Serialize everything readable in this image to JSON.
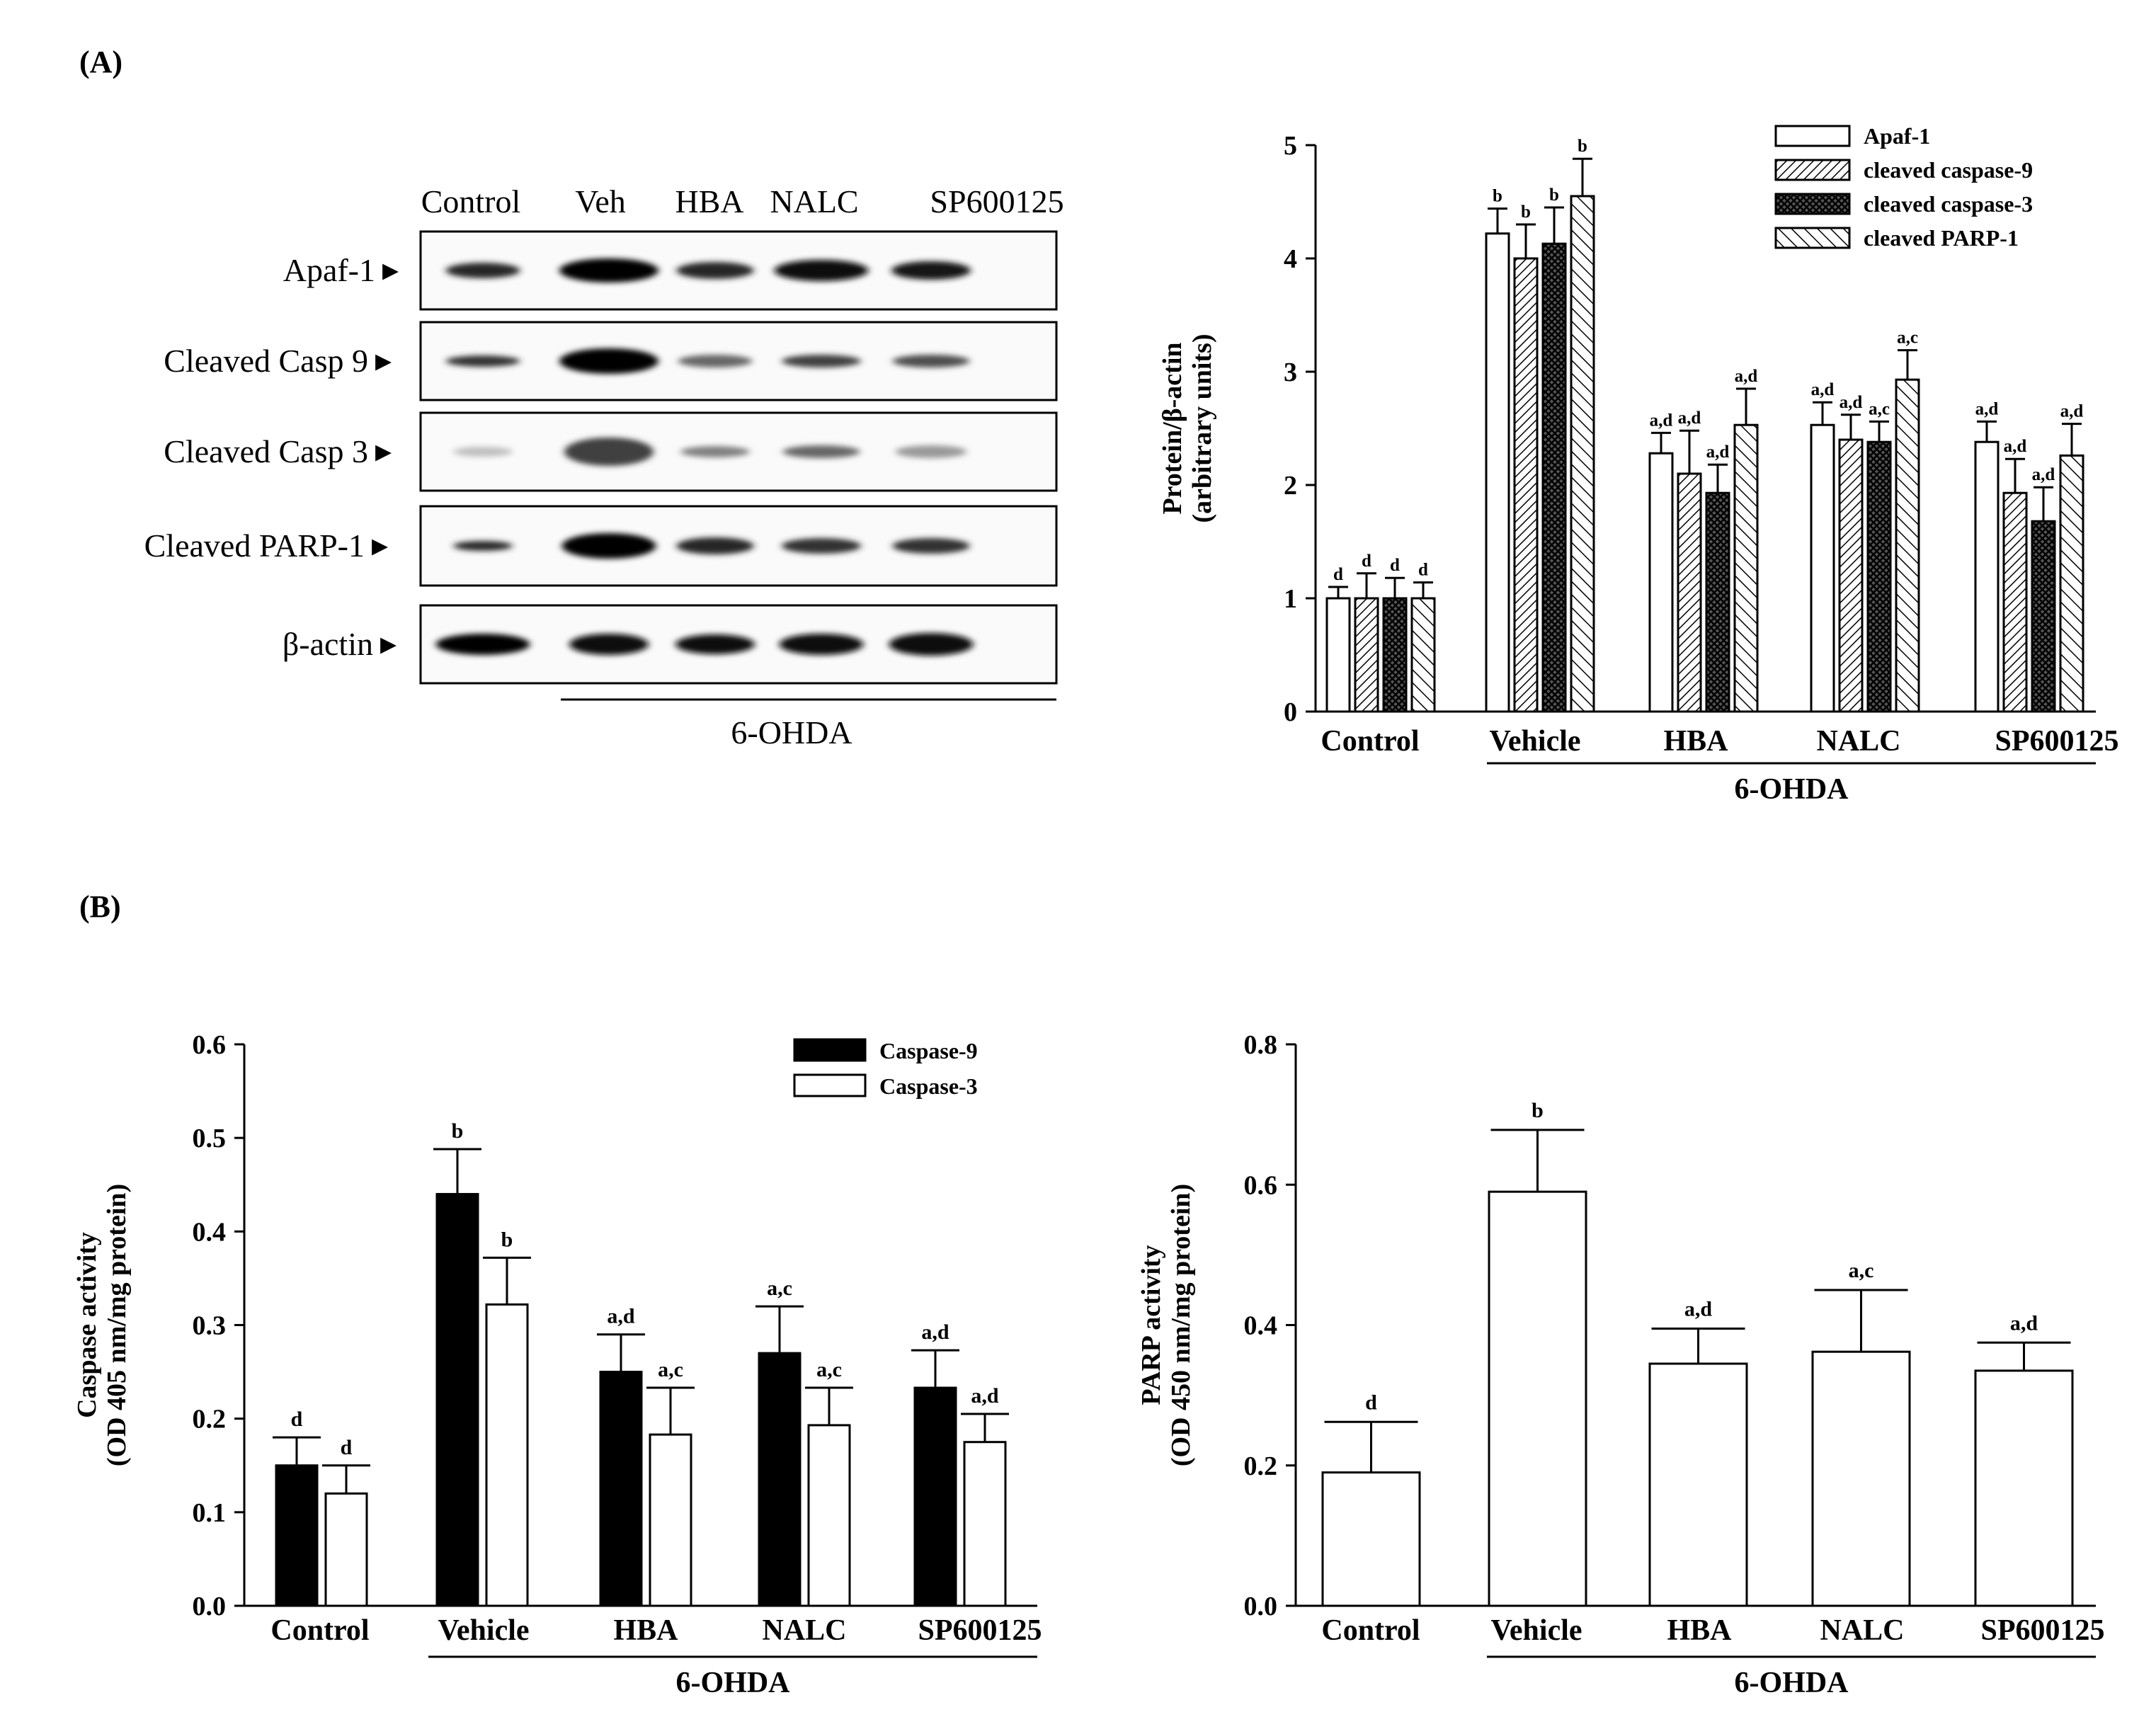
{
  "figure": {
    "panel_a_label": "(A)",
    "panel_b_label": "(B)",
    "treatment_label": "6-OHDA"
  },
  "blot": {
    "lanes": [
      "Control",
      "Veh",
      "HBA",
      "NALC",
      "SP600125"
    ],
    "rows": [
      "Apaf-1",
      "Cleaved Casp 9",
      "Cleaved Casp 3",
      "Cleaved PARP-1",
      "β-actin"
    ],
    "treatment_label": "6-OHDA",
    "arrow": "▸"
  },
  "colors": {
    "black": "#000000",
    "white": "#ffffff"
  },
  "chart_data": [
    {
      "id": "western_quant",
      "type": "bar",
      "title": "",
      "ylabel": [
        "Protein/β-actin",
        "(arbitrary units)"
      ],
      "ylim": [
        0,
        5
      ],
      "yticks": [
        "0",
        "1",
        "2",
        "3",
        "4",
        "5"
      ],
      "categories": [
        "Control",
        "Vehicle",
        "HBA",
        "NALC",
        "SP600125"
      ],
      "group_label": "6-OHDA",
      "legend_position": "top-right",
      "series": [
        {
          "name": "Apaf-1",
          "pattern": "white",
          "values": [
            1.0,
            4.22,
            2.28,
            2.53,
            2.38
          ],
          "errors": [
            0.1,
            0.22,
            0.18,
            0.2,
            0.18
          ],
          "labels": [
            "d",
            "b",
            "a,d",
            "a,d",
            "a,d"
          ]
        },
        {
          "name": "cleaved caspase-9",
          "pattern": "hatch-dense",
          "values": [
            1.0,
            4.0,
            2.1,
            2.4,
            1.93
          ],
          "errors": [
            0.22,
            0.3,
            0.38,
            0.22,
            0.3
          ],
          "labels": [
            "d",
            "b",
            "a,d",
            "a,d",
            "a,d"
          ]
        },
        {
          "name": "cleaved caspase-3",
          "pattern": "crosshatch",
          "values": [
            1.0,
            4.13,
            1.93,
            2.38,
            1.68
          ],
          "errors": [
            0.18,
            0.32,
            0.25,
            0.18,
            0.3
          ],
          "labels": [
            "d",
            "b",
            "a,d",
            "a,c",
            "a,d"
          ]
        },
        {
          "name": "cleaved PARP-1",
          "pattern": "hatch",
          "values": [
            1.0,
            4.55,
            2.53,
            2.93,
            2.26
          ],
          "errors": [
            0.14,
            0.33,
            0.32,
            0.26,
            0.28
          ],
          "labels": [
            "d",
            "b",
            "a,d",
            "a,c",
            "a,d"
          ]
        }
      ]
    },
    {
      "id": "caspase_activity",
      "type": "bar",
      "title": "",
      "ylabel": [
        "Caspase activity",
        "(OD 405 nm/mg protein)"
      ],
      "ylim": [
        0,
        0.6
      ],
      "yticks": [
        "0.0",
        "0.1",
        "0.2",
        "0.3",
        "0.4",
        "0.5",
        "0.6"
      ],
      "categories": [
        "Control",
        "Vehicle",
        "HBA",
        "NALC",
        "SP600125"
      ],
      "group_label": "6-OHDA",
      "legend_position": "top-right",
      "series": [
        {
          "name": "Caspase-9",
          "pattern": "black",
          "values": [
            0.15,
            0.44,
            0.25,
            0.27,
            0.233
          ],
          "errors": [
            0.03,
            0.048,
            0.04,
            0.05,
            0.04
          ],
          "labels": [
            "d",
            "b",
            "a,d",
            "a,c",
            "a,d"
          ]
        },
        {
          "name": "Caspase-3",
          "pattern": "white",
          "values": [
            0.12,
            0.322,
            0.183,
            0.193,
            0.175
          ],
          "errors": [
            0.03,
            0.05,
            0.05,
            0.04,
            0.03
          ],
          "labels": [
            "d",
            "b",
            "a,c",
            "a,c",
            "a,d"
          ]
        }
      ]
    },
    {
      "id": "parp_activity",
      "type": "bar",
      "title": "",
      "ylabel": [
        "PARP activity",
        "(OD 450 nm/mg protein)"
      ],
      "ylim": [
        0,
        0.8
      ],
      "yticks": [
        "0.0",
        "0.2",
        "0.4",
        "0.6",
        "0.8"
      ],
      "categories": [
        "Control",
        "Vehicle",
        "HBA",
        "NALC",
        "SP600125"
      ],
      "group_label": "6-OHDA",
      "legend_position": "none",
      "series": [
        {
          "name": "PARP",
          "pattern": "white",
          "values": [
            0.19,
            0.59,
            0.345,
            0.362,
            0.335
          ],
          "errors": [
            0.072,
            0.088,
            0.05,
            0.088,
            0.04
          ],
          "labels": [
            "d",
            "b",
            "a,d",
            "a,c",
            "a,d"
          ]
        }
      ]
    }
  ]
}
